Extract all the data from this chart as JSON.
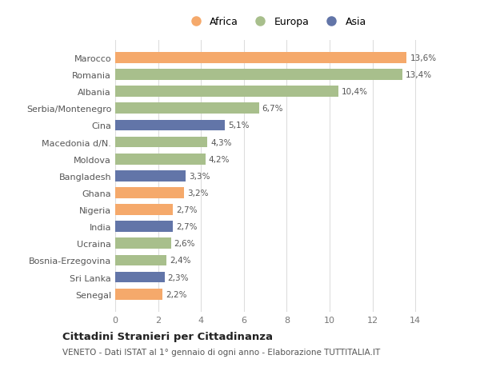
{
  "countries": [
    "Senegal",
    "Sri Lanka",
    "Bosnia-Erzegovina",
    "Ucraina",
    "India",
    "Nigeria",
    "Ghana",
    "Bangladesh",
    "Moldova",
    "Macedonia d/N.",
    "Cina",
    "Serbia/Montenegro",
    "Albania",
    "Romania",
    "Marocco"
  ],
  "values": [
    2.2,
    2.3,
    2.4,
    2.6,
    2.7,
    2.7,
    3.2,
    3.3,
    4.2,
    4.3,
    5.1,
    6.7,
    10.4,
    13.4,
    13.6
  ],
  "labels": [
    "2,2%",
    "2,3%",
    "2,4%",
    "2,6%",
    "2,7%",
    "2,7%",
    "3,2%",
    "3,3%",
    "4,2%",
    "4,3%",
    "5,1%",
    "6,7%",
    "10,4%",
    "13,4%",
    "13,6%"
  ],
  "continents": [
    "Africa",
    "Asia",
    "Europa",
    "Europa",
    "Asia",
    "Africa",
    "Africa",
    "Asia",
    "Europa",
    "Europa",
    "Asia",
    "Europa",
    "Europa",
    "Europa",
    "Africa"
  ],
  "colors": {
    "Africa": "#F5A96B",
    "Europa": "#A8BF8C",
    "Asia": "#6275A8"
  },
  "legend_order": [
    "Africa",
    "Europa",
    "Asia"
  ],
  "xlim": [
    0,
    15
  ],
  "xticks": [
    0,
    2,
    4,
    6,
    8,
    10,
    12,
    14
  ],
  "title": "Cittadini Stranieri per Cittadinanza",
  "subtitle": "VENETO - Dati ISTAT al 1° gennaio di ogni anno - Elaborazione TUTTITALIA.IT",
  "background_color": "#FFFFFF",
  "grid_color": "#DDDDDD",
  "bar_height": 0.65
}
